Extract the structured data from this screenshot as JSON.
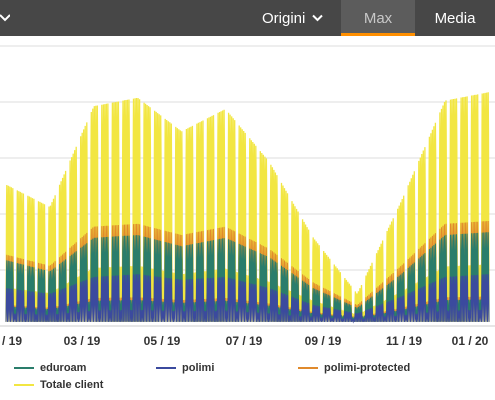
{
  "header": {
    "origini_label": "Origini",
    "tabs": [
      {
        "label": "Max",
        "active": true
      },
      {
        "label": "Media",
        "active": false
      }
    ],
    "colors": {
      "bar": "#474747",
      "active_tab": "#5c5c5c",
      "accent": "#ff8f00"
    }
  },
  "chart_data": {
    "type": "line",
    "x_ticks": [
      "/ 19",
      "03 / 19",
      "05 / 19",
      "07 / 19",
      "09 / 19",
      "11 / 19",
      "01 / 20"
    ],
    "grid": true,
    "y_axis_labels_visible": false,
    "series": [
      {
        "name": "eduroam",
        "color": "#2a7d6b",
        "daily_peaks": [
          0.22,
          0.18,
          0.3,
          0.31,
          0.27,
          0.3,
          0.23,
          0.12,
          0.05,
          0.17,
          0.31,
          0.32
        ]
      },
      {
        "name": "polimi",
        "color": "#3b4a9e",
        "daily_peaks": [
          0.12,
          0.1,
          0.16,
          0.17,
          0.15,
          0.16,
          0.12,
          0.06,
          0.03,
          0.09,
          0.16,
          0.17
        ]
      },
      {
        "name": "polimi-protected",
        "color": "#e08a2c",
        "daily_peaks": [
          0.24,
          0.2,
          0.34,
          0.35,
          0.31,
          0.34,
          0.26,
          0.14,
          0.06,
          0.2,
          0.35,
          0.36
        ]
      },
      {
        "name": "Totale client",
        "color": "#f2e642",
        "daily_peaks": [
          0.49,
          0.41,
          0.77,
          0.8,
          0.68,
          0.76,
          0.57,
          0.3,
          0.1,
          0.43,
          0.79,
          0.82
        ]
      }
    ]
  },
  "legend": {
    "items": [
      "eduroam",
      "polimi",
      "polimi-protected",
      "Totale client"
    ]
  }
}
